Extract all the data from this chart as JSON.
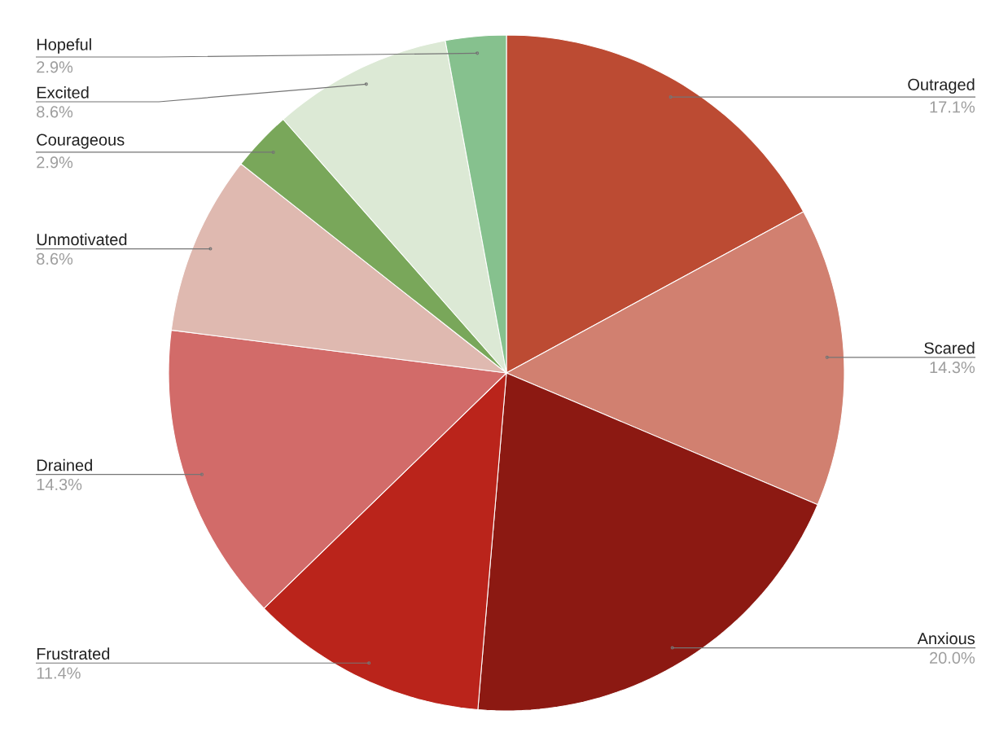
{
  "chart_data": {
    "type": "pie",
    "categories": [
      "Outraged",
      "Scared",
      "Anxious",
      "Frustrated",
      "Drained",
      "Unmotivated",
      "Courageous",
      "Excited",
      "Hopeful"
    ],
    "values": [
      17.1,
      14.3,
      20.0,
      11.4,
      14.3,
      8.6,
      2.9,
      8.6,
      2.9
    ],
    "colors": [
      "#bc4b33",
      "#d18070",
      "#8c1912",
      "#ba241b",
      "#d26b69",
      "#dfb9b0",
      "#79a75a",
      "#dce9d5",
      "#86c18e"
    ],
    "value_labels": [
      "17.1%",
      "14.3%",
      "20.0%",
      "11.4%",
      "14.3%",
      "8.6%",
      "2.9%",
      "8.6%",
      "2.9%"
    ]
  }
}
